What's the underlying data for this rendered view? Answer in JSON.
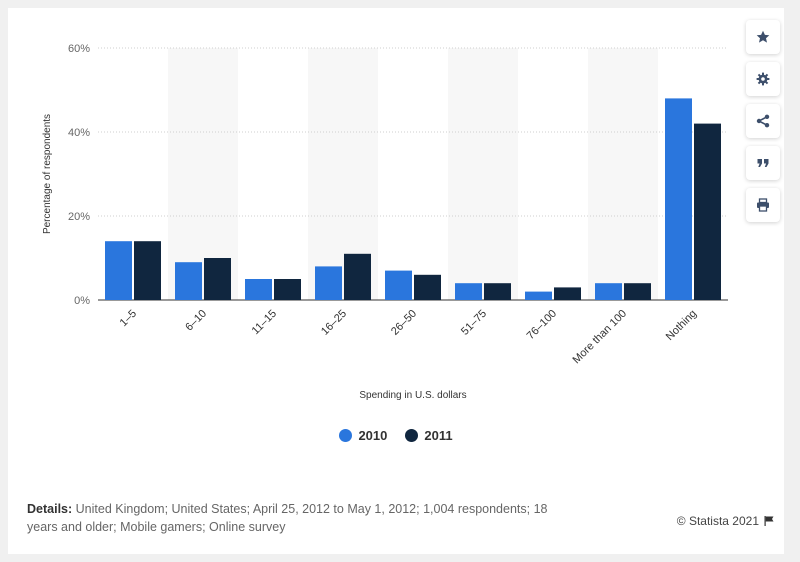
{
  "chart_data": {
    "type": "bar",
    "categories": [
      "1–5",
      "6–10",
      "11–15",
      "16–25",
      "26–50",
      "51–75",
      "76–100",
      "More than 100",
      "Nothing"
    ],
    "series": [
      {
        "name": "2010",
        "values": [
          14,
          9,
          5,
          8,
          7,
          4,
          2,
          4,
          48
        ],
        "color": "#2a76dd"
      },
      {
        "name": "2011",
        "values": [
          14,
          10,
          5,
          11,
          6,
          4,
          3,
          4,
          42
        ],
        "color": "#10263f"
      }
    ],
    "xlabel": "Spending in U.S. dollars",
    "ylabel": "Percentage of respondents",
    "ylim": [
      0,
      60
    ],
    "yticks": [
      0,
      20,
      40,
      60
    ],
    "ytick_labels": [
      "0%",
      "20%",
      "40%",
      "60%"
    ],
    "grid": true,
    "legend_position": "bottom-center"
  },
  "details": {
    "label": "Details:",
    "text": "United Kingdom; United States; April 25, 2012 to May 1, 2012; 1,004 respondents; 18 years and older; Mobile gamers; Online survey"
  },
  "credit": "© Statista 2021",
  "toolbar": {
    "icons": [
      "star-icon",
      "gear-icon",
      "share-icon",
      "quote-icon",
      "print-icon"
    ]
  }
}
